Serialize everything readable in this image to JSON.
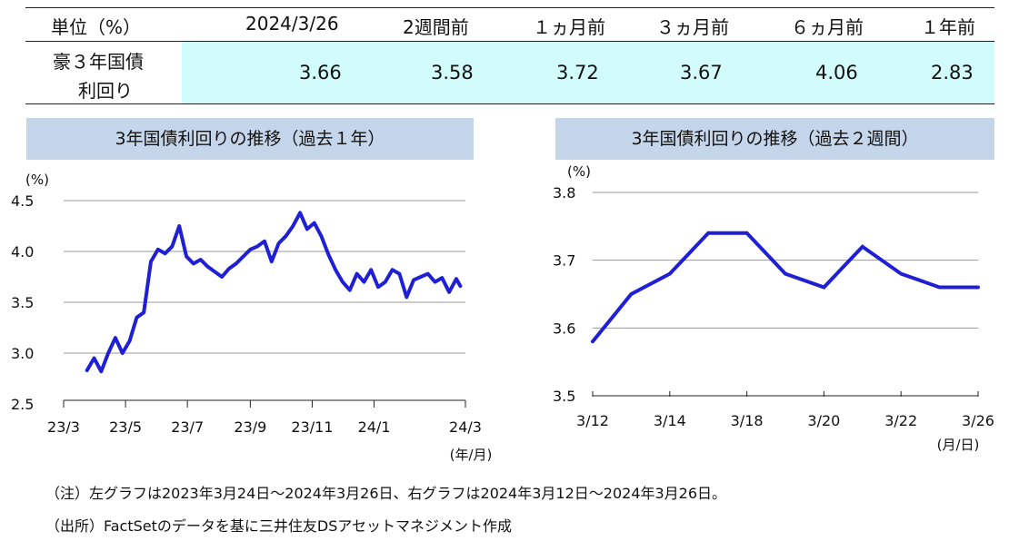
{
  "table": {
    "headers": [
      "単位（%）",
      "2024/3/26",
      "2週間前",
      "１ヵ月前",
      "３ヵ月前",
      "６ヵ月前",
      "１年前"
    ],
    "row_label_line1": "豪３年国債",
    "row_label_line2": "利回り",
    "values": [
      "3.66",
      "3.58",
      "3.72",
      "3.67",
      "4.06",
      "2.83"
    ]
  },
  "left_chart_title": "3年国債利回りの推移（過去１年）",
  "right_chart_title": "3年国債利回りの推移（過去２週間）",
  "notes": {
    "note1": "（注）左グラフは2023年3月24日～2024年3月26日、右グラフは2024年3月12日～2024年3月26日。",
    "note2": "（出所）FactSetのデータを基に三井住友DSアセットマネジメント作成"
  },
  "colors": {
    "line": "#1f1fd6",
    "title_bar": "#c6d6ea",
    "highlight": "#d2fbfb"
  },
  "chart_data": [
    {
      "type": "line",
      "ylabel": "(%)",
      "xlabel": "(年/月)",
      "ylim": [
        2.5,
        4.5
      ],
      "yticks": [
        "2.5",
        "3.0",
        "3.5",
        "4.0",
        "4.5"
      ],
      "xticks": [
        "23/3",
        "23/5",
        "23/7",
        "23/9",
        "23/11",
        "24/1",
        "24/3"
      ],
      "grid": true,
      "series": [
        {
          "x": [
            "2023-03-24",
            "2023-03-31",
            "2023-04-07",
            "2023-04-14",
            "2023-04-21",
            "2023-04-28",
            "2023-05-05",
            "2023-05-12",
            "2023-05-19",
            "2023-05-26",
            "2023-06-02",
            "2023-06-09",
            "2023-06-16",
            "2023-06-23",
            "2023-06-30",
            "2023-07-07",
            "2023-07-14",
            "2023-07-21",
            "2023-07-28",
            "2023-08-04",
            "2023-08-11",
            "2023-08-18",
            "2023-08-25",
            "2023-09-01",
            "2023-09-08",
            "2023-09-15",
            "2023-09-22",
            "2023-09-29",
            "2023-10-06",
            "2023-10-13",
            "2023-10-20",
            "2023-10-27",
            "2023-11-03",
            "2023-11-10",
            "2023-11-17",
            "2023-11-24",
            "2023-12-01",
            "2023-12-08",
            "2023-12-15",
            "2023-12-22",
            "2023-12-29",
            "2024-01-05",
            "2024-01-12",
            "2024-01-19",
            "2024-01-26",
            "2024-02-02",
            "2024-02-09",
            "2024-02-16",
            "2024-02-23",
            "2024-03-01",
            "2024-03-08",
            "2024-03-15",
            "2024-03-22",
            "2024-03-26"
          ],
          "values": [
            2.83,
            2.95,
            2.82,
            3.0,
            3.15,
            3.0,
            3.12,
            3.35,
            3.4,
            3.9,
            4.02,
            3.98,
            4.05,
            4.25,
            3.95,
            3.88,
            3.92,
            3.85,
            3.8,
            3.75,
            3.83,
            3.88,
            3.95,
            4.02,
            4.05,
            4.1,
            3.9,
            4.08,
            4.15,
            4.25,
            4.38,
            4.22,
            4.28,
            4.15,
            3.97,
            3.82,
            3.7,
            3.62,
            3.78,
            3.7,
            3.82,
            3.65,
            3.7,
            3.82,
            3.78,
            3.55,
            3.72,
            3.75,
            3.78,
            3.7,
            3.74,
            3.6,
            3.73,
            3.66
          ]
        }
      ]
    },
    {
      "type": "line",
      "ylabel": "(%)",
      "xlabel": "(月/日)",
      "ylim": [
        3.5,
        3.8
      ],
      "yticks": [
        "3.5",
        "3.6",
        "3.7",
        "3.8"
      ],
      "xticks": [
        "3/12",
        "3/14",
        "3/18",
        "3/20",
        "3/22",
        "3/26"
      ],
      "grid": true,
      "series": [
        {
          "x": [
            "3/12",
            "3/13",
            "3/14",
            "3/15",
            "3/18",
            "3/19",
            "3/20",
            "3/21",
            "3/22",
            "3/25",
            "3/26"
          ],
          "values": [
            3.58,
            3.65,
            3.68,
            3.74,
            3.74,
            3.68,
            3.66,
            3.72,
            3.68,
            3.66,
            3.66
          ]
        }
      ]
    }
  ]
}
